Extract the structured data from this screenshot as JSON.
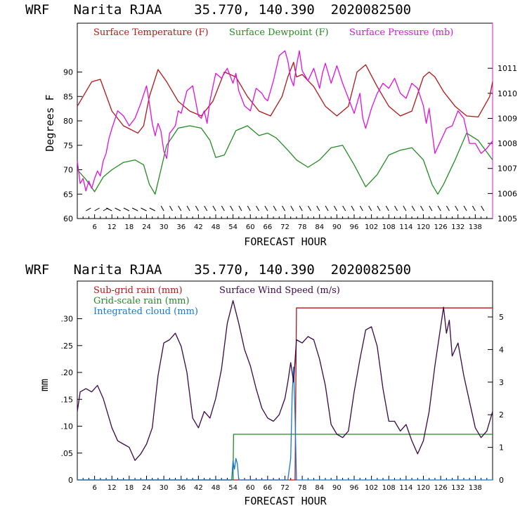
{
  "chart_data": [
    {
      "type": "line",
      "title": "WRF   Narita RJAA    35.770, 140.390  2020082500",
      "xlabel": "FORECAST HOUR",
      "ylabel": "Degrees F",
      "xlim": [
        0,
        144
      ],
      "ylim": [
        60,
        100
      ],
      "y2lim": [
        1005,
        1012.8
      ],
      "x_ticks": [
        "6",
        "12",
        "18",
        "24",
        "30",
        "36",
        "42",
        "48",
        "54",
        "60",
        "66",
        "72",
        "78",
        "84",
        "90",
        "96",
        "102",
        "108",
        "114",
        "120",
        "126",
        "132",
        "138"
      ],
      "y_ticks": [
        "60",
        "65",
        "70",
        "75",
        "80",
        "85",
        "90"
      ],
      "y2_ticks": [
        "1005",
        "1006",
        "1007",
        "1008",
        "1009",
        "1010",
        "1011"
      ],
      "legend": [
        "Surface Temperature (F)",
        "Surface Dewpoint (F)",
        "Surface Pressure (mb)"
      ],
      "colors": {
        "temperature": "#b01818",
        "dewpoint": "#228b22",
        "pressure": "#e010e0",
        "wind": "#000000"
      },
      "series": [
        {
          "name": "Surface Temperature (F)",
          "axis": "left",
          "x": [
            0,
            2,
            5,
            8,
            12,
            16,
            21,
            23,
            25,
            28,
            31,
            35,
            39,
            43,
            47,
            51,
            55,
            59,
            63,
            67,
            71,
            73,
            75,
            76,
            78,
            82,
            86,
            90,
            94,
            97,
            100,
            104,
            108,
            112,
            116,
            120,
            122,
            124,
            127,
            131,
            135,
            139,
            143,
            144
          ],
          "values": [
            83,
            85,
            88,
            88.5,
            82,
            79,
            77.5,
            79,
            85,
            90.5,
            88,
            84,
            82,
            81,
            84,
            90,
            89,
            85,
            82,
            81,
            85,
            89,
            92,
            89,
            89.5,
            87,
            83,
            81,
            83,
            90,
            91.5,
            87,
            83,
            81,
            82,
            89,
            90,
            89,
            86,
            83,
            81,
            80.8,
            85,
            88
          ]
        },
        {
          "name": "Surface Dewpoint (F)",
          "axis": "left",
          "x": [
            0,
            3,
            6,
            9,
            12,
            16,
            20,
            23,
            25,
            27,
            29,
            31,
            35,
            39,
            43,
            46,
            48,
            51,
            55,
            59,
            63,
            66,
            69,
            73,
            76,
            80,
            84,
            88,
            92,
            96,
            100,
            104,
            108,
            112,
            116,
            120,
            123,
            125,
            127,
            131,
            135,
            139,
            144
          ],
          "values": [
            70,
            68,
            65.5,
            68.5,
            70,
            71.5,
            72,
            71,
            67,
            65,
            70,
            75,
            78.5,
            79,
            78.5,
            76,
            72.5,
            73,
            78,
            79,
            77,
            77.5,
            76.5,
            74,
            72,
            70.5,
            72,
            74.5,
            75,
            71,
            66.5,
            69,
            73,
            74,
            74.5,
            72,
            67,
            65,
            67,
            72,
            77.5,
            76,
            72
          ]
        },
        {
          "name": "Surface Pressure (mb)",
          "axis": "right",
          "x": [
            0,
            1,
            2,
            3,
            4,
            5,
            6,
            7,
            8,
            9,
            10,
            11,
            12,
            14,
            16,
            18,
            20,
            22,
            24,
            25,
            26,
            27,
            28,
            29,
            30,
            31,
            32,
            34,
            35,
            36,
            38,
            40,
            42,
            43,
            44,
            45,
            46,
            48,
            50,
            52,
            54,
            55,
            56,
            57,
            58,
            60,
            62,
            64,
            65,
            66,
            68,
            70,
            72,
            73,
            74,
            75,
            76,
            77,
            78,
            80,
            82,
            84,
            85,
            86,
            88,
            90,
            92,
            94,
            96,
            98,
            99,
            100,
            102,
            104,
            106,
            108,
            110,
            112,
            114,
            116,
            118,
            120,
            121,
            122,
            124,
            126,
            128,
            130,
            132,
            134,
            136,
            138,
            140,
            142,
            144
          ],
          "values": [
            1007.3,
            1006.4,
            1006.6,
            1006.1,
            1006.5,
            1006.2,
            1006.6,
            1006.9,
            1006.7,
            1007.3,
            1007.6,
            1008.2,
            1008.6,
            1009.3,
            1009.1,
            1008.7,
            1009.0,
            1009.6,
            1010.3,
            1009.6,
            1008.8,
            1008.3,
            1008.8,
            1008.5,
            1007.7,
            1007.4,
            1008.4,
            1008.7,
            1009.3,
            1009.2,
            1010.1,
            1010.3,
            1009.1,
            1009.0,
            1009.3,
            1008.8,
            1009.7,
            1010.8,
            1010.6,
            1011.0,
            1010.4,
            1010.8,
            1010.1,
            1009.8,
            1009.5,
            1009.3,
            1010.2,
            1010.0,
            1009.8,
            1009.7,
            1010.5,
            1011.5,
            1011.7,
            1011.3,
            1010.6,
            1010.3,
            1011.1,
            1011.7,
            1010.9,
            1010.5,
            1011.0,
            1010.2,
            1010.8,
            1011.2,
            1010.4,
            1011.1,
            1010.4,
            1009.8,
            1009.2,
            1010.0,
            1009.0,
            1008.6,
            1009.4,
            1010.0,
            1010.4,
            1010.2,
            1010.6,
            1010.0,
            1009.8,
            1010.4,
            1010.2,
            1009.5,
            1008.8,
            1009.4,
            1007.6,
            1008.1,
            1008.6,
            1008.7,
            1009.3,
            1009.0,
            1008.0,
            1008.0,
            1007.6,
            1007.8,
            1008.1
          ]
        }
      ]
    },
    {
      "type": "line",
      "title": "WRF   Narita RJAA    35.770, 140.390  2020082500",
      "xlabel": "FORECAST HOUR",
      "ylabel": "mm",
      "xlim": [
        0,
        144
      ],
      "ylim": [
        0,
        0.37
      ],
      "y2lim": [
        0,
        6.1
      ],
      "x_ticks": [
        "6",
        "12",
        "18",
        "24",
        "30",
        "36",
        "42",
        "48",
        "54",
        "60",
        "66",
        "72",
        "78",
        "84",
        "90",
        "96",
        "102",
        "108",
        "114",
        "120",
        "126",
        "132",
        "138"
      ],
      "y_ticks": [
        "0",
        ".05",
        ".10",
        ".15",
        ".20",
        ".25",
        ".30"
      ],
      "y2_ticks": [
        "0",
        "1",
        "2",
        "3",
        "4",
        "5"
      ],
      "legend": [
        "Sub-grid rain (mm)",
        "Grid-scale rain (mm)",
        "Integrated cloud (mm)",
        "Surface Wind Speed (m/s)"
      ],
      "colors": {
        "subgrid": "#b01818",
        "gridscale": "#228b22",
        "cloud": "#1878d0",
        "wind": "#3a0848"
      },
      "series": [
        {
          "name": "Sub-grid rain (mm)",
          "axis": "left",
          "x": [
            0,
            75.5,
            76,
            144
          ],
          "values": [
            0,
            0,
            0.32,
            0.32
          ]
        },
        {
          "name": "Grid-scale rain (mm)",
          "axis": "left",
          "x": [
            0,
            54,
            54.2,
            144
          ],
          "values": [
            0,
            0,
            0.085,
            0.085
          ]
        },
        {
          "name": "Integrated cloud (mm)",
          "axis": "left",
          "x": [
            0,
            53.5,
            54,
            54.5,
            55,
            55.5,
            56,
            73,
            74,
            74.5,
            75,
            75.5,
            76,
            144
          ],
          "values": [
            0,
            0,
            0.035,
            0.02,
            0.04,
            0.03,
            0,
            0,
            0.04,
            0.16,
            0.21,
            0.12,
            0,
            0
          ]
        },
        {
          "name": "Surface Wind Speed (m/s)",
          "axis": "right",
          "x": [
            0,
            1,
            3,
            5,
            7,
            9,
            12,
            14,
            16,
            18,
            20,
            22,
            24,
            26,
            28,
            30,
            32,
            34,
            36,
            38,
            40,
            42,
            44,
            46,
            48,
            50,
            52,
            54,
            56,
            58,
            60,
            62,
            64,
            66,
            68,
            70,
            72,
            73,
            74,
            75,
            76,
            78,
            80,
            82,
            84,
            86,
            88,
            90,
            92,
            94,
            96,
            98,
            100,
            102,
            104,
            106,
            108,
            110,
            112,
            114,
            116,
            118,
            120,
            122,
            124,
            126,
            127,
            128,
            129,
            130,
            132,
            134,
            136,
            138,
            140,
            142,
            144
          ],
          "values": [
            2.1,
            2.7,
            2.8,
            2.7,
            2.9,
            2.5,
            1.6,
            1.2,
            1.1,
            1.0,
            0.6,
            0.8,
            1.1,
            1.6,
            3.2,
            4.2,
            4.3,
            4.5,
            4.1,
            3.3,
            1.9,
            1.6,
            2.1,
            1.9,
            2.5,
            3.4,
            4.8,
            5.5,
            4.8,
            4.0,
            3.5,
            2.8,
            2.2,
            1.9,
            1.8,
            2.0,
            2.5,
            3.0,
            3.6,
            3.0,
            4.3,
            4.2,
            4.4,
            4.3,
            3.7,
            2.9,
            1.7,
            1.4,
            1.3,
            1.5,
            2.7,
            3.7,
            4.6,
            4.7,
            4.1,
            2.8,
            1.8,
            1.8,
            1.5,
            1.7,
            1.2,
            0.8,
            1.2,
            2.1,
            3.5,
            4.7,
            5.3,
            4.5,
            4.9,
            3.8,
            4.2,
            3.2,
            2.4,
            1.6,
            1.3,
            1.5,
            2.1
          ]
        }
      ]
    }
  ]
}
